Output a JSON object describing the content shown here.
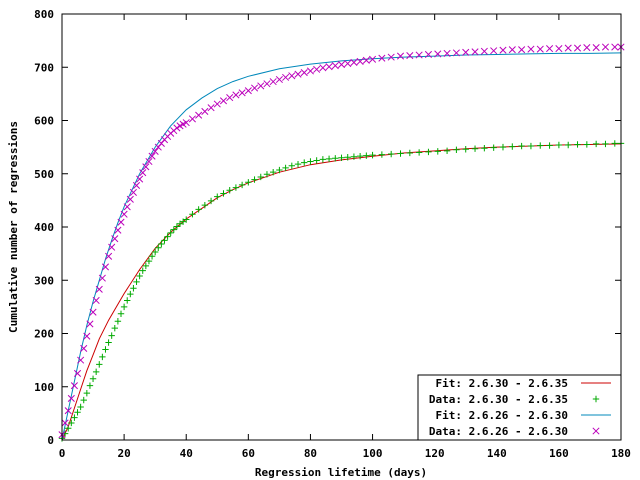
{
  "chart_data": {
    "type": "scatter",
    "title": "",
    "xlabel": "Regression lifetime (days)",
    "ylabel": "Cumulative number of regressions",
    "xlim": [
      0,
      180
    ],
    "ylim": [
      0,
      800
    ],
    "xticks": [
      0,
      20,
      40,
      60,
      80,
      100,
      120,
      140,
      160,
      180
    ],
    "yticks": [
      0,
      100,
      200,
      300,
      400,
      500,
      600,
      700,
      800
    ],
    "xtick_labels": [
      "0",
      "20",
      "40",
      "60",
      "80",
      "100",
      "120",
      "140",
      "160",
      "180"
    ],
    "ytick_labels": [
      "0",
      "100",
      "200",
      "300",
      "400",
      "500",
      "600",
      "700",
      "800"
    ],
    "grid": false,
    "legend_position": "bottom-right",
    "series": [
      {
        "name": "Fit: 2.6.30 - 2.6.35",
        "kind": "line",
        "color": "#cc0000",
        "x": [
          0,
          2,
          4,
          6,
          8,
          10,
          12,
          15,
          18,
          20,
          25,
          30,
          35,
          40,
          45,
          50,
          55,
          60,
          70,
          80,
          90,
          100,
          110,
          120,
          130,
          140,
          150,
          160,
          170,
          180
        ],
        "y": [
          0,
          25,
          60,
          95,
          130,
          160,
          190,
          225,
          255,
          275,
          320,
          360,
          390,
          415,
          435,
          455,
          470,
          483,
          503,
          517,
          526,
          533,
          539,
          543,
          547,
          550,
          552,
          554,
          555,
          556
        ]
      },
      {
        "name": "Data: 2.6.30 - 2.6.35",
        "kind": "points",
        "marker": "plus",
        "color": "#00aa00",
        "x": [
          0,
          1,
          2,
          3,
          4,
          5,
          6,
          7,
          8,
          9,
          10,
          11,
          12,
          13,
          14,
          15,
          16,
          17,
          18,
          19,
          20,
          21,
          22,
          23,
          24,
          25,
          26,
          27,
          28,
          29,
          30,
          31,
          32,
          33,
          34,
          35,
          36,
          37,
          38,
          39,
          40,
          42,
          44,
          46,
          48,
          50,
          52,
          54,
          56,
          58,
          60,
          62,
          64,
          66,
          68,
          70,
          72,
          74,
          76,
          78,
          80,
          82,
          84,
          86,
          88,
          90,
          92,
          94,
          96,
          98,
          100,
          103,
          106,
          109,
          112,
          115,
          118,
          121,
          124,
          127,
          130,
          133,
          136,
          139,
          142,
          145,
          148,
          151,
          154,
          157,
          160,
          163,
          166,
          169,
          172,
          175,
          178,
          180
        ],
        "y": [
          3,
          12,
          22,
          32,
          42,
          52,
          62,
          75,
          88,
          102,
          115,
          128,
          142,
          156,
          170,
          183,
          196,
          210,
          223,
          237,
          250,
          262,
          274,
          285,
          297,
          308,
          318,
          327,
          336,
          345,
          353,
          361,
          368,
          375,
          382,
          389,
          395,
          401,
          406,
          410,
          414,
          424,
          433,
          441,
          449,
          457,
          463,
          469,
          474,
          479,
          484,
          489,
          494,
          499,
          503,
          507,
          511,
          515,
          518,
          521,
          523,
          525,
          527,
          528,
          529,
          530,
          531,
          532,
          533,
          534,
          535,
          536,
          537,
          538,
          539,
          540,
          541,
          542,
          543,
          545,
          546,
          547,
          548,
          549,
          550,
          551,
          552,
          552,
          553,
          553,
          554,
          554,
          555,
          555,
          556,
          556,
          557,
          557
        ]
      },
      {
        "name": "Fit: 2.6.26 - 2.6.30",
        "kind": "line",
        "color": "#0088bb",
        "x": [
          0,
          2,
          4,
          6,
          8,
          10,
          12,
          14,
          16,
          18,
          20,
          25,
          30,
          35,
          40,
          45,
          50,
          55,
          60,
          70,
          80,
          90,
          100,
          110,
          120,
          130,
          140,
          150,
          160,
          170,
          180
        ],
        "y": [
          0,
          55,
          110,
          165,
          215,
          260,
          300,
          340,
          375,
          408,
          438,
          500,
          550,
          590,
          620,
          642,
          660,
          673,
          683,
          697,
          706,
          712,
          716,
          719,
          721,
          723,
          724,
          725,
          726,
          726,
          727
        ]
      },
      {
        "name": "Data: 2.6.26 - 2.6.30",
        "kind": "points",
        "marker": "cross",
        "color": "#bb00bb",
        "x": [
          0,
          1,
          2,
          3,
          4,
          5,
          6,
          7,
          8,
          9,
          10,
          11,
          12,
          13,
          14,
          15,
          16,
          17,
          18,
          19,
          20,
          21,
          22,
          23,
          24,
          25,
          26,
          27,
          28,
          29,
          30,
          31,
          32,
          33,
          34,
          35,
          36,
          37,
          38,
          39,
          40,
          42,
          44,
          46,
          48,
          50,
          52,
          54,
          56,
          58,
          60,
          62,
          64,
          66,
          68,
          70,
          72,
          74,
          76,
          78,
          80,
          82,
          84,
          86,
          88,
          90,
          92,
          94,
          96,
          98,
          100,
          103,
          106,
          109,
          112,
          115,
          118,
          121,
          124,
          127,
          130,
          133,
          136,
          139,
          142,
          145,
          148,
          151,
          154,
          157,
          160,
          163,
          166,
          169,
          172,
          175,
          178,
          180
        ],
        "y": [
          10,
          32,
          55,
          78,
          102,
          125,
          150,
          172,
          195,
          218,
          240,
          262,
          283,
          304,
          325,
          345,
          362,
          378,
          394,
          409,
          424,
          438,
          452,
          465,
          478,
          490,
          502,
          513,
          523,
          533,
          542,
          550,
          557,
          564,
          570,
          576,
          581,
          586,
          590,
          593,
          596,
          603,
          610,
          617,
          624,
          631,
          637,
          643,
          648,
          652,
          656,
          661,
          665,
          669,
          673,
          677,
          681,
          684,
          687,
          690,
          693,
          696,
          699,
          701,
          703,
          705,
          707,
          709,
          711,
          713,
          715,
          717,
          719,
          721,
          722,
          723,
          724,
          725,
          726,
          727,
          728,
          729,
          730,
          731,
          732,
          733,
          733,
          734,
          734,
          735,
          735,
          736,
          736,
          737,
          737,
          738,
          738,
          738
        ]
      }
    ]
  }
}
